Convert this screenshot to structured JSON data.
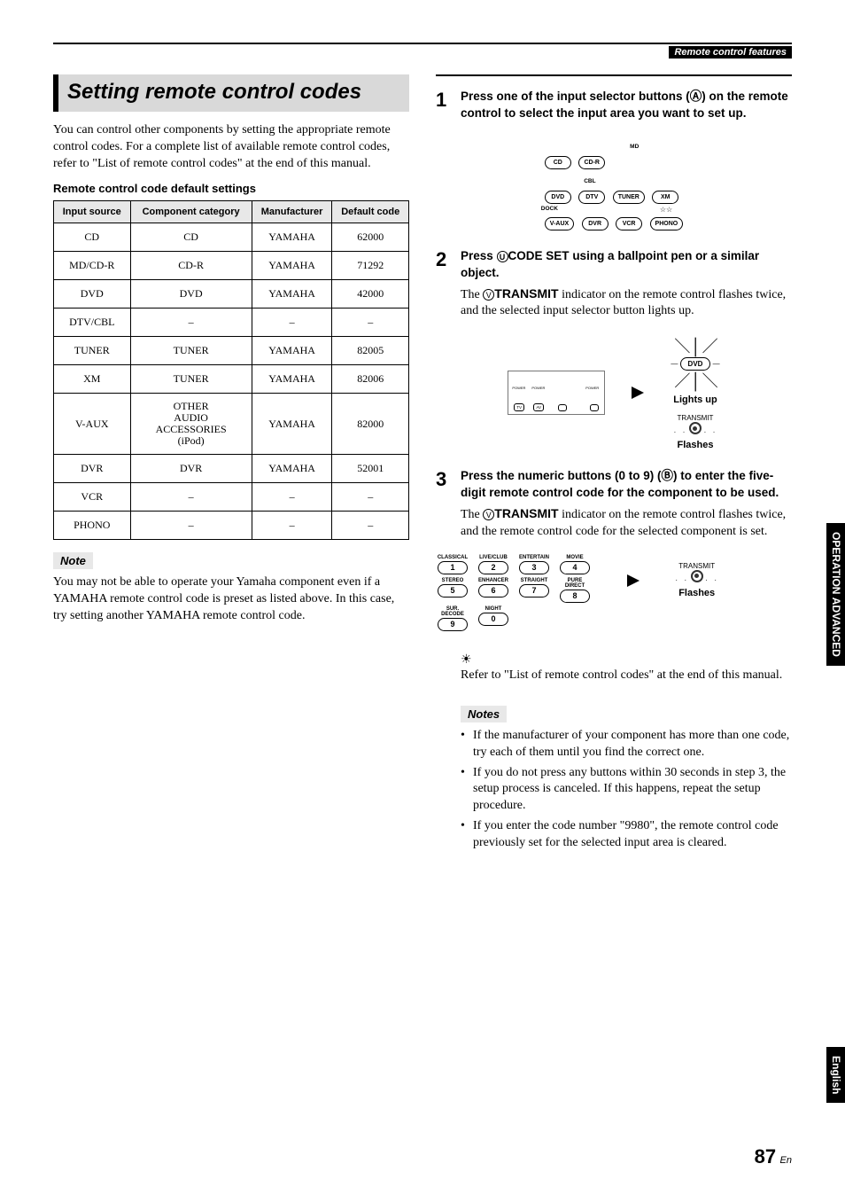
{
  "header": {
    "running": "Remote control features"
  },
  "left": {
    "title": "Setting remote control codes",
    "intro": "You can control other components by setting the appropriate remote control codes. For a complete list of available remote control codes, refer to \"List of remote control codes\" at the end of this manual.",
    "tableHeading": "Remote control code default settings",
    "table": {
      "columns": [
        "Input source",
        "Component category",
        "Manufacturer",
        "Default code"
      ],
      "rows": [
        [
          "CD",
          "CD",
          "YAMAHA",
          "62000"
        ],
        [
          "MD/CD-R",
          "CD-R",
          "YAMAHA",
          "71292"
        ],
        [
          "DVD",
          "DVD",
          "YAMAHA",
          "42000"
        ],
        [
          "DTV/CBL",
          "–",
          "–",
          "–"
        ],
        [
          "TUNER",
          "TUNER",
          "YAMAHA",
          "82005"
        ],
        [
          "XM",
          "TUNER",
          "YAMAHA",
          "82006"
        ],
        [
          "V-AUX",
          "OTHER AUDIO ACCESSORIES (iPod)",
          "YAMAHA",
          "82000"
        ],
        [
          "DVR",
          "DVR",
          "YAMAHA",
          "52001"
        ],
        [
          "VCR",
          "–",
          "–",
          "–"
        ],
        [
          "PHONO",
          "–",
          "–",
          "–"
        ]
      ]
    },
    "noteLabel": "Note",
    "noteText": "You may not be able to operate your Yamaha component even if a YAMAHA remote control code is preset as listed above. In this case, try setting another YAMAHA remote control code."
  },
  "right": {
    "step1": {
      "num": "1",
      "text": "Press one of the input selector buttons (Ⓐ) on the remote control to select the input area you want to set up."
    },
    "selectorDiagram": {
      "labels": [
        "MD",
        "CBL",
        "DOCK"
      ],
      "row1": [
        "CD",
        "CD-R"
      ],
      "row2": [
        "DVD",
        "DTV",
        "TUNER",
        "XM"
      ],
      "row3": [
        "V-AUX",
        "DVR",
        "VCR",
        "PHONO"
      ],
      "stars": "☆☆"
    },
    "step2": {
      "num": "2",
      "textPre": "Press ",
      "codeLetter": "U",
      "codeSet": "CODE SET",
      "textPost": " using a ballpoint pen or a similar object.",
      "para": "The ⓋTRANSMIT indicator on the remote control flashes twice, and the selected input selector button lights up."
    },
    "diag2": {
      "dvd": "DVD",
      "lights": "Lights up",
      "transmit": "TRANSMIT",
      "flashes": "Flashes",
      "miniButtons": [
        "TV",
        "AV",
        "",
        ""
      ],
      "miniLabels": [
        "POWER",
        "POWER",
        "",
        "POWER"
      ]
    },
    "step3": {
      "num": "3",
      "text": "Press the numeric buttons (0 to 9) (Ⓑ) to enter the five-digit remote control code for the component to be used.",
      "para": "The ⓋTRANSMIT indicator on the remote control flashes twice, and the remote control code for the selected component is set."
    },
    "numpad": {
      "row1": [
        {
          "lbl": "CLASSICAL",
          "n": "1"
        },
        {
          "lbl": "LIVE/CLUB",
          "n": "2"
        },
        {
          "lbl": "ENTERTAIN",
          "n": "3"
        },
        {
          "lbl": "MOVIE",
          "n": "4"
        }
      ],
      "row2": [
        {
          "lbl": "STEREO",
          "n": "5"
        },
        {
          "lbl": "ENHANCER",
          "n": "6"
        },
        {
          "lbl": "STRAIGHT",
          "n": "7"
        },
        {
          "lbl": "PURE DIRECT",
          "n": "8"
        }
      ],
      "row3": [
        {
          "lbl": "SUR. DECODE",
          "n": "9"
        },
        {
          "lbl": "NIGHT",
          "n": "0"
        }
      ],
      "transmit": "TRANSMIT",
      "flashes": "Flashes"
    },
    "tip": "Refer to \"List of remote control codes\" at the end of this manual.",
    "notesLabel": "Notes",
    "notes": [
      "If the manufacturer of your component has more than one code, try each of them until you find the correct one.",
      "If you do not press any buttons within 30 seconds in step 3, the setup process is canceled. If this happens, repeat the setup procedure.",
      "If you enter the code number \"9980\", the remote control code previously set for the selected input area is cleared."
    ]
  },
  "sideTabs": {
    "tab1a": "ADVANCED",
    "tab1b": "OPERATION",
    "tab2": "English"
  },
  "pageNumber": {
    "n": "87",
    "suffix": "En"
  }
}
